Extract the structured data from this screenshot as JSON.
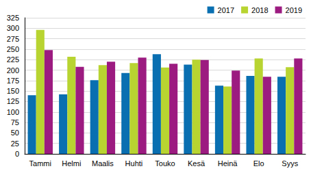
{
  "chart_data": {
    "type": "bar",
    "categories": [
      "Tammi",
      "Helmi",
      "Maalis",
      "Huhti",
      "Touko",
      "Kesä",
      "Heinä",
      "Elo",
      "Syys"
    ],
    "series": [
      {
        "name": "2017",
        "color": "#0a6fb0",
        "values": [
          140,
          142,
          176,
          193,
          238,
          213,
          163,
          186,
          184
        ]
      },
      {
        "name": "2018",
        "color": "#b8d431",
        "values": [
          296,
          232,
          212,
          217,
          206,
          225,
          161,
          228,
          207
        ]
      },
      {
        "name": "2019",
        "color": "#9b1b80",
        "values": [
          248,
          208,
          220,
          230,
          215,
          224,
          199,
          184,
          228
        ]
      }
    ],
    "ylim": [
      0,
      325
    ],
    "yticks": [
      0,
      25,
      50,
      75,
      100,
      125,
      150,
      175,
      200,
      225,
      250,
      275,
      300,
      325
    ],
    "grid": true,
    "legend": "top-right"
  }
}
